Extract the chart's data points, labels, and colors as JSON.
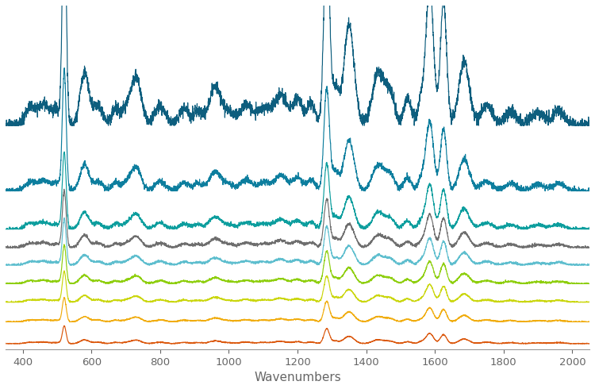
{
  "xlabel": "Wavenumbers",
  "x_range": [
    350,
    2050
  ],
  "background_color": "#ffffff",
  "xlabel_fontsize": 11,
  "tick_fontsize": 9.5,
  "colors": [
    "#d94f00",
    "#f0a800",
    "#c8d400",
    "#88cc00",
    "#55bbcc",
    "#666666",
    "#009999",
    "#007799",
    "#005577"
  ],
  "offsets": [
    0.0,
    0.2,
    0.38,
    0.55,
    0.72,
    0.88,
    1.05,
    1.4,
    2.0
  ],
  "scale_factors": [
    0.16,
    0.22,
    0.28,
    0.35,
    0.42,
    0.52,
    0.7,
    1.1,
    2.2
  ]
}
